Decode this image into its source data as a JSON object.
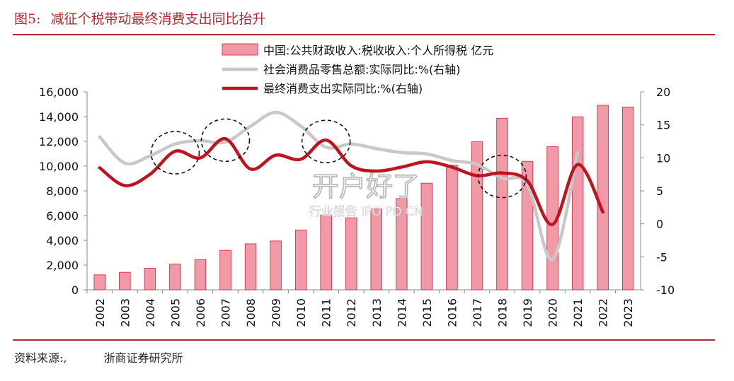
{
  "figure": {
    "number": "图5:",
    "title": "减征个税带动最终消费支出同比抬升",
    "source_label": "资料来源:,",
    "source_org": "浙商证券研究所"
  },
  "colors": {
    "bars": "#ef9aa6",
    "bar_border": "#c8243a",
    "retail_line": "#c8c8c8",
    "consumption_line": "#c0131f",
    "accent": "#b5282e"
  },
  "chart_data": {
    "type": "bar+line",
    "x": [
      "2002",
      "2003",
      "2004",
      "2005",
      "2006",
      "2007",
      "2008",
      "2009",
      "2010",
      "2011",
      "2012",
      "2013",
      "2014",
      "2015",
      "2016",
      "2017",
      "2018",
      "2019",
      "2020",
      "2021",
      "2022",
      "2023"
    ],
    "y_left": {
      "min": 0,
      "max": 16000,
      "ticks": [
        "0",
        "2,000",
        "4,000",
        "6,000",
        "8,000",
        "10,000",
        "12,000",
        "14,000",
        "16,000"
      ]
    },
    "y_right": {
      "min": -10,
      "max": 20,
      "ticks": [
        "-10",
        "-5",
        "0",
        "5",
        "10",
        "15",
        "20"
      ]
    },
    "series": [
      {
        "name": "中国:公共财政收入:税收收入:个人所得税 亿元",
        "kind": "bar",
        "axis": "left",
        "values": [
          1210,
          1420,
          1740,
          2090,
          2450,
          3190,
          3720,
          3950,
          4840,
          6050,
          5820,
          6530,
          7380,
          8620,
          10090,
          11970,
          13870,
          10390,
          11570,
          13990,
          14920,
          14780
        ]
      },
      {
        "name": "社会消费品零售总额:实际同比:%(右轴)",
        "kind": "line",
        "axis": "right",
        "values": [
          13.2,
          9.2,
          10.3,
          12.1,
          12.6,
          12.4,
          14.8,
          16.9,
          14.8,
          11.6,
          12.1,
          11.4,
          10.8,
          10.6,
          9.6,
          9.0,
          6.9,
          6.0,
          -5.4,
          10.8,
          null,
          null
        ]
      },
      {
        "name": "最终消费支出实际同比:%(右轴)",
        "kind": "line",
        "axis": "right",
        "values": [
          8.5,
          5.8,
          7.5,
          11.0,
          10.0,
          12.9,
          8.3,
          10.4,
          9.8,
          12.7,
          8.8,
          8.0,
          8.6,
          9.4,
          8.6,
          7.3,
          7.7,
          6.5,
          -0.1,
          9.0,
          1.8,
          null
        ]
      }
    ],
    "annotations": "dashed circles highlight 2005, 2007, 2011, 2018",
    "watermark": {
      "main": "开户好了",
      "sub": "行业报告 IPO PO CN"
    },
    "legend_position": "top",
    "grid": false
  }
}
